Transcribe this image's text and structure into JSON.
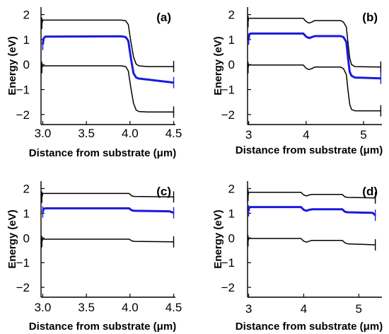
{
  "chart_data": [
    {
      "type": "line",
      "panel_label": "(a)",
      "xlabel": "Distance from substrate (μm)",
      "ylabel": "Energy (eV)",
      "xlim": [
        2.98,
        4.52
      ],
      "ylim": [
        -2.4,
        2.3
      ],
      "xticks": [
        "3.0",
        "3.5",
        "4.0",
        "4.5"
      ],
      "xtick_values": [
        3.0,
        3.5,
        4.0,
        4.5
      ],
      "yticks": [
        "2",
        "1",
        "0",
        "−1",
        "−2"
      ],
      "ytick_values": [
        2,
        1,
        0,
        -1,
        -2
      ],
      "colors": {
        "conduction": "#000000",
        "fermi": "#1a1adc",
        "valence": "#000000"
      },
      "series": [
        {
          "x": [
            2.99,
            3.0,
            3.02,
            3.9,
            3.95,
            3.98,
            4.01,
            4.04,
            4.07,
            4.1,
            4.2,
            4.5
          ],
          "y": [
            1.65,
            1.78,
            1.78,
            1.78,
            1.75,
            1.6,
            0.9,
            0.3,
            0.02,
            -0.05,
            -0.08,
            -0.08
          ]
        },
        {
          "x": [
            3.0,
            3.01,
            3.03,
            3.9,
            3.95,
            3.98,
            4.01,
            4.04,
            4.07,
            4.1,
            4.2,
            4.5
          ],
          "y": [
            0.8,
            1.05,
            1.12,
            1.13,
            1.1,
            0.95,
            0.25,
            -0.35,
            -0.52,
            -0.56,
            -0.6,
            -0.72
          ]
        },
        {
          "x": [
            2.99,
            3.0,
            3.02,
            3.9,
            3.95,
            3.98,
            4.01,
            4.04,
            4.07,
            4.1,
            4.2,
            4.5
          ],
          "y": [
            -0.12,
            -0.05,
            -0.05,
            -0.05,
            -0.08,
            -0.25,
            -0.95,
            -1.55,
            -1.82,
            -1.88,
            -1.9,
            -1.9
          ]
        }
      ]
    },
    {
      "type": "line",
      "panel_label": "(b)",
      "xlabel": "Distance from substrate (μm)",
      "ylabel": "Energy (eV)",
      "xlim": [
        2.98,
        5.32
      ],
      "ylim": [
        -2.4,
        2.3
      ],
      "xticks": [
        "3",
        "4",
        "5"
      ],
      "xtick_values": [
        3,
        4,
        5
      ],
      "yticks": [
        "2",
        "1",
        "0",
        "−1",
        "−2"
      ],
      "ytick_values": [
        2,
        1,
        0,
        -1,
        -2
      ],
      "colors": {
        "conduction": "#000000",
        "fermi": "#1a1adc",
        "valence": "#000000"
      },
      "series": [
        {
          "x": [
            2.99,
            3.0,
            3.02,
            3.95,
            4.0,
            4.05,
            4.1,
            4.15,
            4.6,
            4.65,
            4.7,
            4.73,
            4.76,
            4.79,
            4.85,
            5.3
          ],
          "y": [
            1.72,
            1.85,
            1.85,
            1.85,
            1.72,
            1.66,
            1.7,
            1.76,
            1.76,
            1.7,
            1.5,
            0.85,
            0.25,
            0.0,
            -0.08,
            -0.1
          ]
        },
        {
          "x": [
            3.0,
            3.01,
            3.03,
            3.95,
            4.0,
            4.05,
            4.1,
            4.15,
            4.6,
            4.65,
            4.7,
            4.73,
            4.76,
            4.79,
            4.85,
            5.3
          ],
          "y": [
            1.02,
            1.2,
            1.24,
            1.24,
            1.12,
            1.06,
            1.1,
            1.14,
            1.14,
            1.1,
            0.9,
            0.25,
            -0.3,
            -0.45,
            -0.52,
            -0.55
          ]
        },
        {
          "x": [
            2.99,
            3.0,
            3.02,
            3.95,
            4.0,
            4.05,
            4.1,
            4.15,
            4.6,
            4.65,
            4.7,
            4.73,
            4.76,
            4.79,
            4.85,
            5.3
          ],
          "y": [
            -0.12,
            -0.02,
            -0.02,
            -0.02,
            -0.15,
            -0.2,
            -0.16,
            -0.1,
            -0.1,
            -0.16,
            -0.4,
            -1.05,
            -1.6,
            -1.8,
            -1.85,
            -1.85
          ]
        }
      ]
    },
    {
      "type": "line",
      "panel_label": "(c)",
      "xlabel": "Distance from substrate (μm)",
      "ylabel": "Energy (eV)",
      "xlim": [
        2.98,
        4.52
      ],
      "ylim": [
        -2.4,
        2.3
      ],
      "xticks": [
        "3.0",
        "3.5",
        "4.0",
        "4.5"
      ],
      "xtick_values": [
        3.0,
        3.5,
        4.0,
        4.5
      ],
      "yticks": [
        "2",
        "1",
        "0",
        "−1",
        "−2"
      ],
      "ytick_values": [
        2,
        1,
        0,
        -1,
        -2
      ],
      "colors": {
        "conduction": "#000000",
        "fermi": "#1a1adc",
        "valence": "#000000"
      },
      "series": [
        {
          "x": [
            2.99,
            3.0,
            3.02,
            3.99,
            4.02,
            4.05,
            4.5
          ],
          "y": [
            1.65,
            1.8,
            1.8,
            1.8,
            1.7,
            1.68,
            1.66
          ]
        },
        {
          "x": [
            3.0,
            3.01,
            3.03,
            3.99,
            4.02,
            4.05,
            4.45,
            4.5
          ],
          "y": [
            1.05,
            1.18,
            1.2,
            1.2,
            1.12,
            1.1,
            1.08,
            1.02
          ]
        },
        {
          "x": [
            2.99,
            3.0,
            3.02,
            3.99,
            4.02,
            4.05,
            4.5
          ],
          "y": [
            -0.15,
            -0.05,
            -0.05,
            -0.05,
            -0.12,
            -0.14,
            -0.16
          ]
        }
      ]
    },
    {
      "type": "line",
      "panel_label": "(d)",
      "xlabel": "Distance from substrate (μm)",
      "ylabel": "Energy (eV)",
      "xlim": [
        2.98,
        5.42
      ],
      "ylim": [
        -2.4,
        2.3
      ],
      "xticks": [
        "3",
        "4",
        "5"
      ],
      "xtick_values": [
        3,
        4,
        5
      ],
      "yticks": [
        "2",
        "1",
        "0",
        "−1",
        "−2"
      ],
      "ytick_values": [
        2,
        1,
        0,
        -1,
        -2
      ],
      "colors": {
        "conduction": "#000000",
        "fermi": "#1a1adc",
        "valence": "#000000"
      },
      "series": [
        {
          "x": [
            2.99,
            3.0,
            3.02,
            3.95,
            4.0,
            4.05,
            4.1,
            4.15,
            4.7,
            4.75,
            4.8,
            5.3
          ],
          "y": [
            1.72,
            1.85,
            1.85,
            1.85,
            1.74,
            1.7,
            1.74,
            1.76,
            1.76,
            1.66,
            1.64,
            1.62
          ]
        },
        {
          "x": [
            3.0,
            3.01,
            3.03,
            3.95,
            4.0,
            4.05,
            4.1,
            4.15,
            4.7,
            4.75,
            4.8,
            5.25,
            5.3
          ],
          "y": [
            1.1,
            1.23,
            1.25,
            1.25,
            1.14,
            1.1,
            1.14,
            1.16,
            1.16,
            1.06,
            1.04,
            1.02,
            0.92
          ]
        },
        {
          "x": [
            2.99,
            3.0,
            3.02,
            3.95,
            4.0,
            4.05,
            4.1,
            4.15,
            4.7,
            4.75,
            4.8,
            5.3
          ],
          "y": [
            -0.12,
            -0.02,
            -0.02,
            -0.02,
            -0.13,
            -0.17,
            -0.13,
            -0.1,
            -0.1,
            -0.2,
            -0.24,
            -0.28
          ]
        }
      ]
    }
  ]
}
